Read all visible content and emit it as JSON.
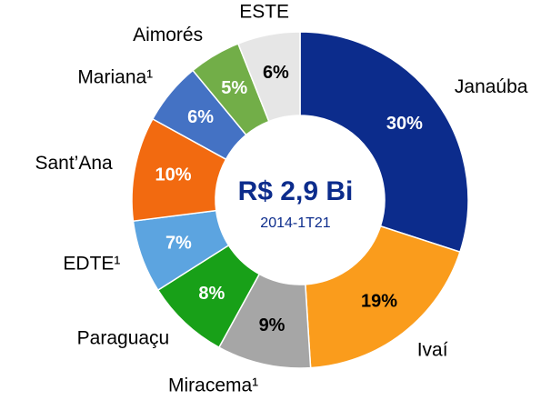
{
  "chart_data": {
    "type": "donut",
    "title": "R$ 2,9 Bi",
    "subtitle": "2014-1T21",
    "categories": [
      "Janaúba",
      "Ivaí",
      "Miracema¹",
      "Paraguaçu",
      "EDTE¹",
      "Sant’Ana",
      "Mariana¹",
      "Aimorés",
      "ESTE"
    ],
    "values": [
      30,
      19,
      9,
      8,
      7,
      10,
      6,
      5,
      6
    ],
    "value_labels": [
      "30%",
      "19%",
      "9%",
      "8%",
      "7%",
      "10%",
      "6%",
      "5%",
      "6%"
    ],
    "colors": [
      "#0c2c8c",
      "#fa9c1c",
      "#a6a6a6",
      "#18a018",
      "#5ca4e0",
      "#f26a10",
      "#4472c4",
      "#72ae48",
      "#e6e6e6"
    ]
  }
}
